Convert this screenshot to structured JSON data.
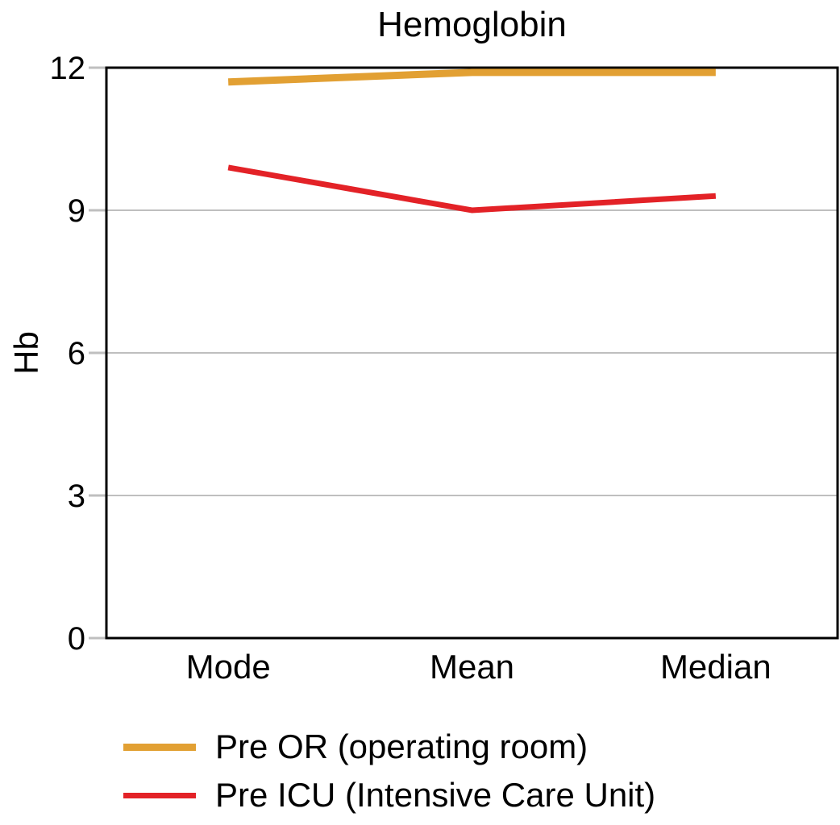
{
  "chart_data": {
    "type": "line",
    "title": "Hemoglobin",
    "xlabel": "",
    "ylabel": "Hb",
    "categories": [
      "Mode",
      "Mean",
      "Median"
    ],
    "series": [
      {
        "name": "Pre OR (operating room)",
        "color": "#E2A033",
        "values": [
          11.7,
          11.9,
          11.9
        ]
      },
      {
        "name": "Pre ICU (Intensive Care Unit)",
        "color": "#E32227",
        "values": [
          9.9,
          9.0,
          9.3
        ]
      }
    ],
    "ylim": [
      0,
      12
    ],
    "yticks": [
      0,
      3,
      6,
      9,
      12
    ],
    "grid": true,
    "gridlines_at": [
      3,
      6,
      9
    ],
    "legend_position": "bottom-left",
    "colors": {
      "background": "#FFFFFF",
      "axis_frame": "#000000",
      "gridline": "#BFBFBF",
      "tick": "#BFBFBF",
      "text": "#000000"
    }
  }
}
